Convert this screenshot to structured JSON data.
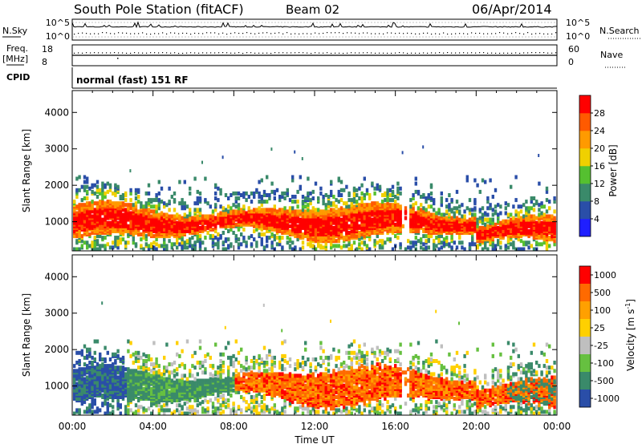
{
  "header": {
    "station": "South Pole Station (fitACF)",
    "beam": "Beam 02",
    "date": "06/Apr/2014"
  },
  "noise_panel": {
    "left_label": "N.Sky",
    "right_label": "N.Search",
    "left_ticks": [
      "10^5",
      "10^0"
    ],
    "right_ticks": [
      "10^5",
      "10^0"
    ]
  },
  "freq_panel": {
    "left_label_1": "Freq.",
    "left_label_2": "[MHz]",
    "right_label": "Nave",
    "left_ticks": [
      "18",
      "8"
    ],
    "right_ticks": [
      "60",
      "0"
    ]
  },
  "cpid": {
    "label": "CPID",
    "value": "normal (fast) 151 RF"
  },
  "colors": {
    "power": [
      "#1f1fff",
      "#2a4ea8",
      "#3a8a6a",
      "#55c030",
      "#f0d000",
      "#ff9a00",
      "#ff5a00",
      "#ff0000"
    ],
    "velocity": [
      "#ff0000",
      "#ff6a00",
      "#ffa000",
      "#ffd000",
      "#bfbfbf",
      "#66c040",
      "#3a8a6a",
      "#2a4ea8"
    ]
  },
  "chart_data": [
    {
      "type": "heatmap",
      "name": "power",
      "ylabel": "Slant Range [km]",
      "ylim": [
        200,
        4600
      ],
      "yticks": [
        "1000",
        "2000",
        "3000",
        "4000"
      ],
      "xlim_hours": [
        0,
        24
      ],
      "colorbar": {
        "label": "Power [dB]",
        "ticks": [
          "4",
          "8",
          "12",
          "16",
          "20",
          "24",
          "28"
        ],
        "range": [
          0,
          32
        ]
      }
    },
    {
      "type": "heatmap",
      "name": "velocity",
      "ylabel": "Slant Range [km]",
      "ylim": [
        200,
        4600
      ],
      "yticks": [
        "1000",
        "2000",
        "3000",
        "4000"
      ],
      "xlim_hours": [
        0,
        24
      ],
      "colorbar": {
        "label": "Velocity [m s",
        "label_sup": "-1",
        "label_end": "]",
        "ticks": [
          "1000",
          "500",
          "100",
          "25",
          "-25",
          "-100",
          "-500",
          "-1000"
        ]
      }
    }
  ],
  "xaxis": {
    "label": "Time UT",
    "ticks": [
      "00:00",
      "04:00",
      "08:00",
      "12:00",
      "16:00",
      "20:00",
      "00:00"
    ]
  }
}
